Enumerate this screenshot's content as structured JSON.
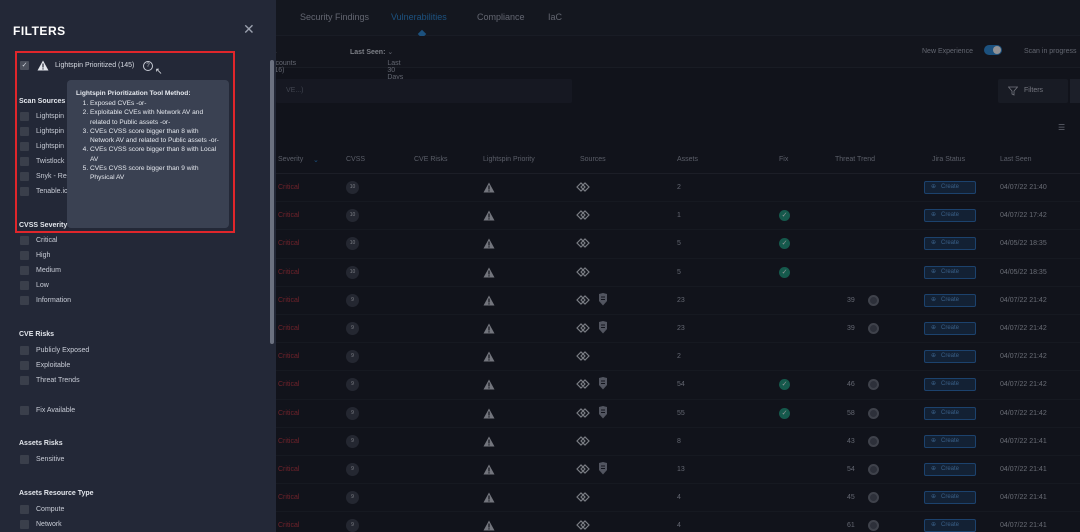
{
  "topnav": {
    "tabs": [
      {
        "label": "Security Findings"
      },
      {
        "label": "Vulnerabilities"
      },
      {
        "label": "Compliance"
      },
      {
        "label": "IaC"
      }
    ]
  },
  "subbar": {
    "accounts_label": "ccounts (16)",
    "last_seen_label": "Last Seen:",
    "last_seen_value": "Last 30 Days",
    "new_experience": "New Experience",
    "scan_status": "Scan in progress"
  },
  "search": {
    "placeholder": "VE...)"
  },
  "filters_button": "Filters",
  "table": {
    "headers": [
      "Severity",
      "CVSS",
      "CVE Risks",
      "Lightspin Priority",
      "Sources",
      "Assets",
      "Fix",
      "Threat Trend",
      "Jira Status",
      "Last Seen"
    ],
    "jira_label": "Create",
    "rows": [
      {
        "severity": "Critical",
        "cvss": "10",
        "assets": "2",
        "fix": false,
        "threat": "",
        "second_source": false,
        "last_seen": "04/07/22 21:40"
      },
      {
        "severity": "Critical",
        "cvss": "10",
        "assets": "1",
        "fix": true,
        "threat": "",
        "second_source": false,
        "last_seen": "04/07/22 17:42"
      },
      {
        "severity": "Critical",
        "cvss": "10",
        "assets": "5",
        "fix": true,
        "threat": "",
        "second_source": false,
        "last_seen": "04/05/22 18:35"
      },
      {
        "severity": "Critical",
        "cvss": "10",
        "assets": "5",
        "fix": true,
        "threat": "",
        "second_source": false,
        "last_seen": "04/05/22 18:35"
      },
      {
        "severity": "Critical",
        "cvss": "9",
        "assets": "23",
        "fix": false,
        "threat": "39",
        "second_source": true,
        "last_seen": "04/07/22 21:42"
      },
      {
        "severity": "Critical",
        "cvss": "9",
        "assets": "23",
        "fix": false,
        "threat": "39",
        "second_source": true,
        "last_seen": "04/07/22 21:42"
      },
      {
        "severity": "Critical",
        "cvss": "9",
        "assets": "2",
        "fix": false,
        "threat": "",
        "second_source": false,
        "last_seen": "04/07/22 21:42"
      },
      {
        "severity": "Critical",
        "cvss": "9",
        "assets": "54",
        "fix": true,
        "threat": "46",
        "second_source": true,
        "last_seen": "04/07/22 21:42"
      },
      {
        "severity": "Critical",
        "cvss": "9",
        "assets": "55",
        "fix": true,
        "threat": "58",
        "second_source": true,
        "last_seen": "04/07/22 21:42"
      },
      {
        "severity": "Critical",
        "cvss": "9",
        "assets": "8",
        "fix": false,
        "threat": "43",
        "second_source": false,
        "last_seen": "04/07/22 21:41"
      },
      {
        "severity": "Critical",
        "cvss": "9",
        "assets": "13",
        "fix": false,
        "threat": "54",
        "second_source": true,
        "last_seen": "04/07/22 21:41"
      },
      {
        "severity": "Critical",
        "cvss": "9",
        "assets": "4",
        "fix": false,
        "threat": "45",
        "second_source": false,
        "last_seen": "04/07/22 21:41"
      },
      {
        "severity": "Critical",
        "cvss": "9",
        "assets": "4",
        "fix": false,
        "threat": "61",
        "second_source": false,
        "last_seen": "04/07/22 21:41"
      }
    ]
  },
  "panel": {
    "title": "FILTERS",
    "close": "✕",
    "prioritized_label": "Lightspin Prioritized (145)",
    "sections": {
      "scan_sources": "Scan Sources",
      "cvss_severity": "CVSS Severity",
      "cve_risks": "CVE Risks",
      "assets_risks": "Assets Risks",
      "assets_resource_type": "Assets Resource Type"
    },
    "scan_sources": [
      "Lightspin",
      "Lightspin",
      "Lightspin",
      "Twistlock",
      "Snyk - Rep",
      "Tenable.io"
    ],
    "severity": [
      "Critical",
      "High",
      "Medium",
      "Low",
      "Information"
    ],
    "cve_risks": [
      "Publicly Exposed",
      "Exploitable",
      "Threat Trends"
    ],
    "fix_available": "Fix Available",
    "assets_risks": [
      "Sensitive"
    ],
    "resource_types": [
      "Compute",
      "Network"
    ]
  },
  "tooltip": {
    "title": "Lightspin Prioritization Tool Method:",
    "items": [
      "Exposed CVEs -or-",
      "Exploitable CVEs with Network AV and related to Public assets -or-",
      "CVEs CVSS score bigger than 8 with Network AV and related to Public assets -or-",
      "CVEs CVSS score bigger than 8 with Local AV",
      "CVEs CVSS score bigger than 9 with Physical AV"
    ]
  },
  "colors": {
    "accent": "#2a8bd8",
    "critical": "#c0353f",
    "fix": "#1e9a7d",
    "highlight_box": "#e0262b"
  }
}
